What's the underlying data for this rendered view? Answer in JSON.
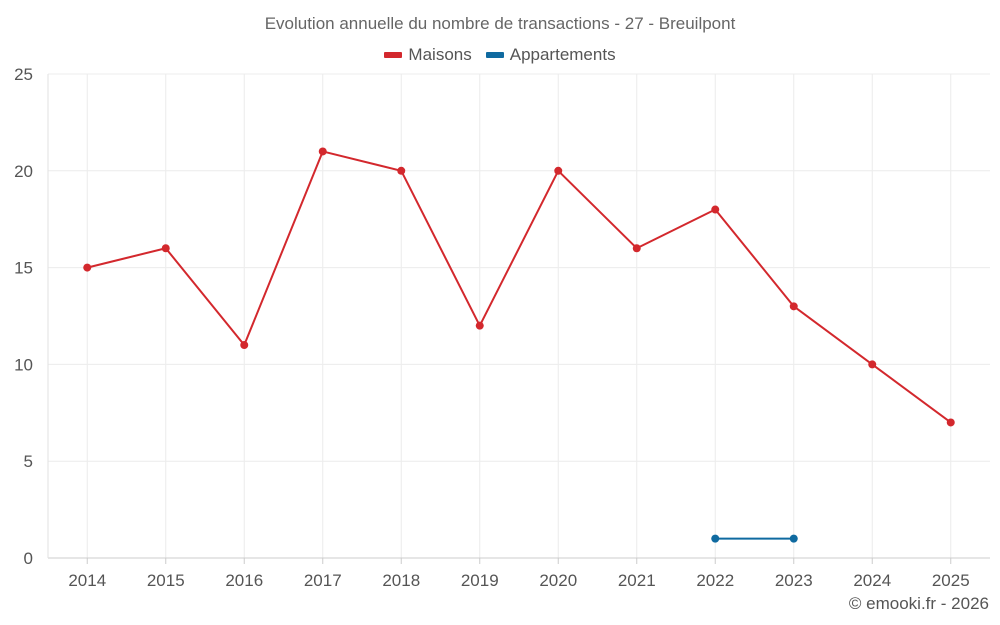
{
  "chart_data": {
    "type": "line",
    "title": "Evolution annuelle du nombre de transactions - 27 - Breuilpont",
    "xlabel": "",
    "ylabel": "",
    "categories": [
      "2014",
      "2015",
      "2016",
      "2017",
      "2018",
      "2019",
      "2020",
      "2021",
      "2022",
      "2023",
      "2024",
      "2025"
    ],
    "ylim": [
      0,
      25
    ],
    "yticks": [
      0,
      5,
      10,
      15,
      20,
      25
    ],
    "grid": true,
    "legend_position": "top-center",
    "series": [
      {
        "name": "Maisons",
        "color": "#d3282d",
        "values": [
          15,
          16,
          11,
          21,
          20,
          12,
          20,
          16,
          18,
          13,
          10,
          7
        ]
      },
      {
        "name": "Appartements",
        "color": "#0f6aa0",
        "values": [
          null,
          null,
          null,
          null,
          null,
          null,
          null,
          null,
          1,
          1,
          null,
          null
        ]
      }
    ]
  },
  "credit": "© emooki.fr - 2026"
}
